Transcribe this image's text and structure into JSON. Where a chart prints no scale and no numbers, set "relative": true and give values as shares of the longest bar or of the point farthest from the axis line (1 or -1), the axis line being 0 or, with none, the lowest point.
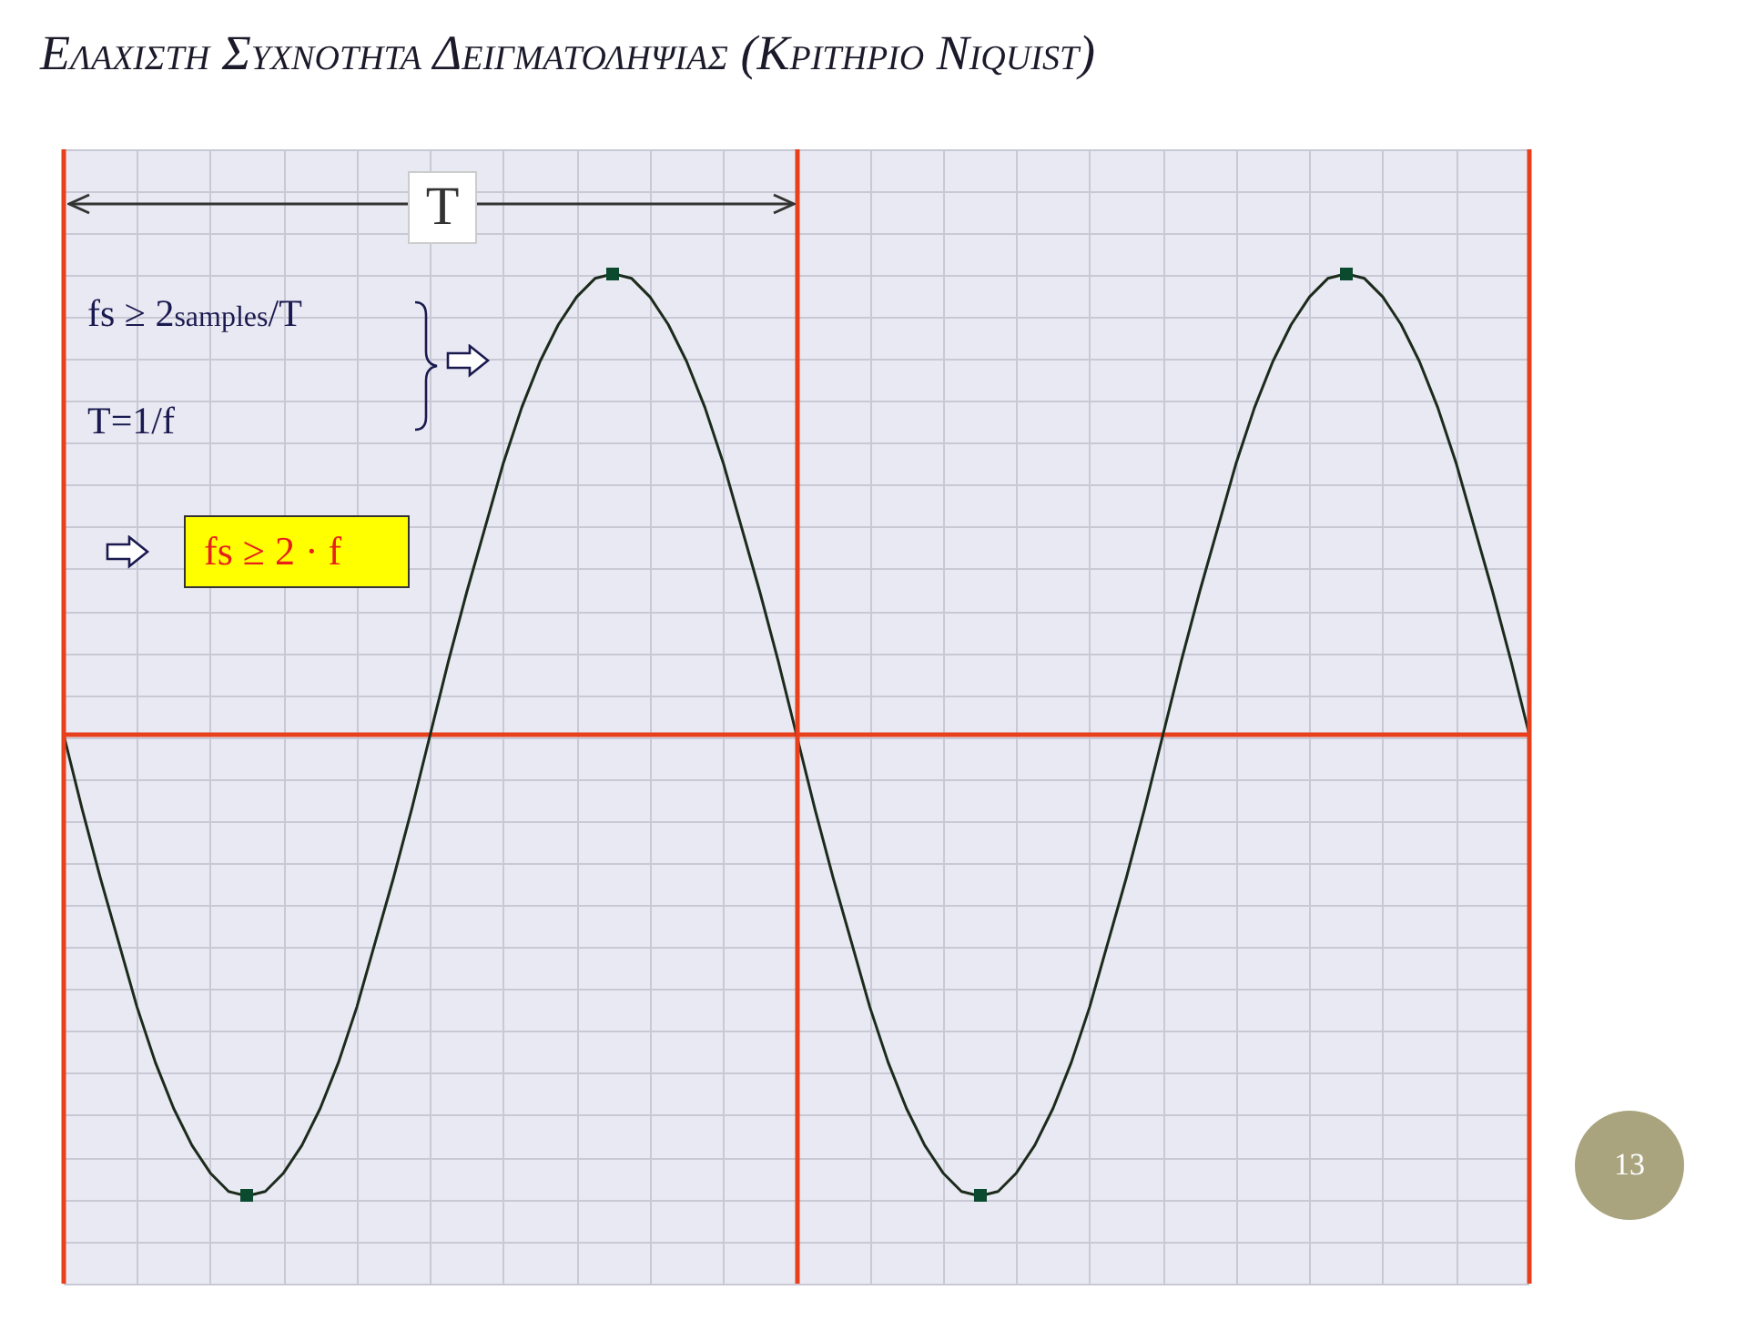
{
  "chart_data": {
    "type": "line",
    "title": "Ελαχιστη Συχνοτητα Δειγματοληψιας (Κριτηριο Niquist)",
    "relative": true,
    "grid": true,
    "categories": [
      null,
      null,
      null,
      null,
      null,
      null,
      null,
      null,
      null,
      null,
      null,
      null,
      null,
      null,
      null,
      null,
      null,
      null,
      null,
      null,
      null,
      null,
      null,
      null,
      null,
      null,
      null,
      null,
      null,
      null,
      null,
      null,
      null,
      null,
      null,
      null,
      null,
      null,
      null,
      null,
      null,
      null,
      null,
      null,
      null,
      null,
      null,
      null,
      null,
      null,
      null,
      null,
      null,
      null,
      null,
      null,
      null,
      null,
      null,
      null,
      null,
      null,
      null,
      null,
      null,
      null,
      null,
      null,
      null,
      null,
      null,
      null,
      null,
      null,
      null,
      null,
      null,
      null,
      null,
      null,
      null
    ],
    "series": [
      {
        "color": "#1c2b1c",
        "marker": "none",
        "line_style": "solid",
        "values": [
          0,
          -0.16,
          -0.31,
          -0.45,
          -0.59,
          -0.71,
          -0.81,
          -0.89,
          -0.95,
          -0.99,
          -1,
          -0.99,
          -0.95,
          -0.89,
          -0.81,
          -0.71,
          -0.59,
          -0.45,
          -0.31,
          -0.16,
          0,
          0.16,
          0.31,
          0.45,
          0.59,
          0.71,
          0.81,
          0.89,
          0.95,
          0.99,
          1,
          0.99,
          0.95,
          0.89,
          0.81,
          0.71,
          0.59,
          0.45,
          0.31,
          0.16,
          0,
          -0.16,
          -0.31,
          -0.45,
          -0.59,
          -0.71,
          -0.81,
          -0.89,
          -0.95,
          -0.99,
          -1,
          -0.99,
          -0.95,
          -0.89,
          -0.81,
          -0.71,
          -0.59,
          -0.45,
          -0.31,
          -0.16,
          0,
          0.16,
          0.31,
          0.45,
          0.59,
          0.71,
          0.81,
          0.89,
          0.95,
          0.99,
          1,
          0.99,
          0.95,
          0.89,
          0.81,
          0.71,
          0.59,
          0.45,
          0.31,
          0.16,
          0
        ]
      }
    ],
    "ref_lines": [
      {
        "axis": "y",
        "value": 0,
        "color": "#e8401c"
      }
    ],
    "annotations": [
      "T",
      "fs ≥ 2samples/T",
      "T=1/f",
      "fs ≥ 2 · f",
      "13"
    ]
  }
}
